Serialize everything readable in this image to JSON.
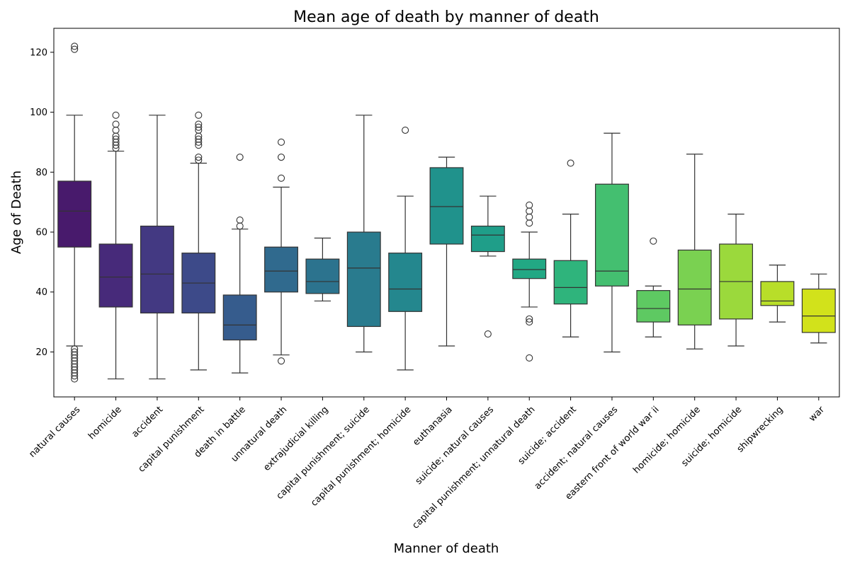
{
  "chart_data": {
    "type": "box",
    "title": "Mean age of death by manner of death",
    "xlabel": "Manner of death",
    "ylabel": "Age of Death",
    "ylim": [
      5,
      128
    ],
    "yticks": [
      20,
      40,
      60,
      80,
      100,
      120
    ],
    "grid": false,
    "legend": "none",
    "colormap": "viridis",
    "categories": [
      "natural causes",
      "homicide",
      "accident",
      "capital punishment",
      "death in battle",
      "unnatural death",
      "extrajudicial killing",
      "capital punishment; suicide",
      "capital punishment; homicide",
      "euthanasia",
      "suicide; natural causes",
      "capital punishment; unnatural death",
      "suicide; accident",
      "accident; natural causes",
      "eastern front of world war ii",
      "homicide; homicide",
      "suicide; homicide",
      "shipwrecking",
      "war"
    ],
    "boxes": [
      {
        "category": "natural causes",
        "whislo": 22,
        "q1": 55,
        "med": 67,
        "q3": 77,
        "whishi": 99,
        "fliers": [
          11,
          12,
          13,
          14,
          15,
          16,
          17,
          18,
          19,
          20,
          21,
          121,
          122
        ],
        "color": "#481a6c"
      },
      {
        "category": "homicide",
        "whislo": 11,
        "q1": 35,
        "med": 45,
        "q3": 56,
        "whishi": 87,
        "fliers": [
          88,
          89,
          90,
          91,
          92,
          94,
          96,
          99
        ],
        "color": "#472a7a"
      },
      {
        "category": "accident",
        "whislo": 11,
        "q1": 33,
        "med": 46,
        "q3": 62,
        "whishi": 99,
        "fliers": [],
        "color": "#433982"
      },
      {
        "category": "capital punishment",
        "whislo": 14,
        "q1": 33,
        "med": 43,
        "q3": 53,
        "whishi": 83,
        "fliers": [
          84,
          85,
          89,
          90,
          91,
          92,
          94,
          95,
          96,
          99
        ],
        "color": "#3d4a89"
      },
      {
        "category": "death in battle",
        "whislo": 13,
        "q1": 24,
        "med": 29,
        "q3": 39,
        "whishi": 61,
        "fliers": [
          62,
          64,
          85
        ],
        "color": "#365c8d"
      },
      {
        "category": "unnatural death",
        "whislo": 19,
        "q1": 40,
        "med": 47,
        "q3": 55,
        "whishi": 75,
        "fliers": [
          17,
          78,
          85,
          90
        ],
        "color": "#306a8e"
      },
      {
        "category": "extrajudicial killing",
        "whislo": 37,
        "q1": 39.5,
        "med": 43.5,
        "q3": 51,
        "whishi": 58,
        "fliers": [],
        "color": "#2c738e"
      },
      {
        "category": "capital punishment; suicide",
        "whislo": 20,
        "q1": 28.5,
        "med": 48,
        "q3": 60,
        "whishi": 99,
        "fliers": [],
        "color": "#297b8e"
      },
      {
        "category": "capital punishment; homicide",
        "whislo": 14,
        "q1": 33.5,
        "med": 41,
        "q3": 53,
        "whishi": 72,
        "fliers": [
          94
        ],
        "color": "#24878e"
      },
      {
        "category": "euthanasia",
        "whislo": 22,
        "q1": 56,
        "med": 68.5,
        "q3": 81.5,
        "whishi": 85,
        "fliers": [],
        "color": "#20928c"
      },
      {
        "category": "suicide; natural causes",
        "whislo": 52,
        "q1": 53.5,
        "med": 59,
        "q3": 62,
        "whishi": 72,
        "fliers": [
          26
        ],
        "color": "#1f9e89"
      },
      {
        "category": "capital punishment; unnatural death",
        "whislo": 35,
        "q1": 44.5,
        "med": 47.5,
        "q3": 51,
        "whishi": 60,
        "fliers": [
          18,
          30,
          31,
          63,
          65,
          67,
          69
        ],
        "color": "#22a884"
      },
      {
        "category": "suicide; accident",
        "whislo": 25,
        "q1": 36,
        "med": 41.5,
        "q3": 50.5,
        "whishi": 66,
        "fliers": [
          83
        ],
        "color": "#2fb47c"
      },
      {
        "category": "accident; natural causes",
        "whislo": 20,
        "q1": 42,
        "med": 47,
        "q3": 76,
        "whishi": 93,
        "fliers": [],
        "color": "#44bf70"
      },
      {
        "category": "eastern front of world war ii",
        "whislo": 25,
        "q1": 30,
        "med": 34.5,
        "q3": 40.5,
        "whishi": 42,
        "fliers": [
          57
        ],
        "color": "#5ec962"
      },
      {
        "category": "homicide; homicide",
        "whislo": 21,
        "q1": 29,
        "med": 41,
        "q3": 54,
        "whishi": 86,
        "fliers": [],
        "color": "#7ad151"
      },
      {
        "category": "suicide; homicide",
        "whislo": 22,
        "q1": 31,
        "med": 43.5,
        "q3": 56,
        "whishi": 66,
        "fliers": [],
        "color": "#9bd93c"
      },
      {
        "category": "shipwrecking",
        "whislo": 30,
        "q1": 35.5,
        "med": 37,
        "q3": 43.5,
        "whishi": 49,
        "fliers": [],
        "color": "#b8de29"
      },
      {
        "category": "war",
        "whislo": 23,
        "q1": 26.5,
        "med": 32,
        "q3": 41,
        "whishi": 46,
        "fliers": [],
        "color": "#d2e21b"
      }
    ]
  }
}
